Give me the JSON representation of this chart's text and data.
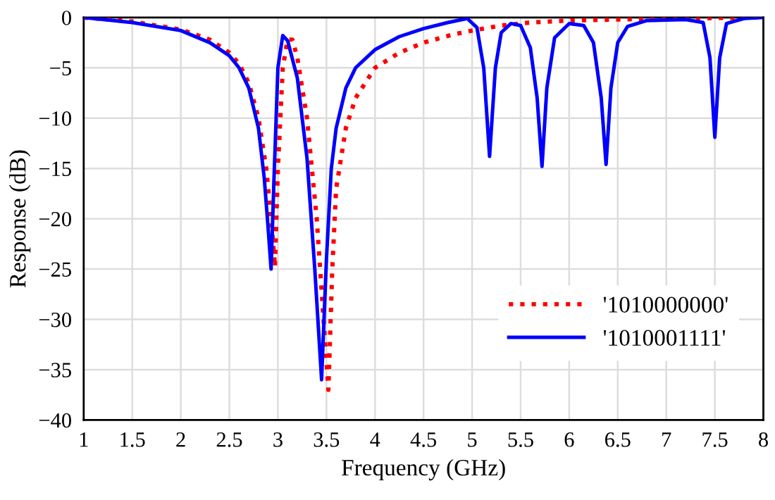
{
  "chart_data": {
    "type": "line",
    "xlabel": "Frequency (GHz)",
    "ylabel": "Response (dB)",
    "xlim": [
      1,
      8
    ],
    "xticks": [
      1,
      1.5,
      2,
      2.5,
      3,
      3.5,
      4,
      4.5,
      5,
      5.5,
      6,
      6.5,
      7,
      7.5,
      8
    ],
    "ylim": [
      -40,
      0
    ],
    "yticks": [
      {
        "value": -40,
        "label": "−40"
      },
      {
        "value": -35,
        "label": "−35"
      },
      {
        "value": -30,
        "label": "−30"
      },
      {
        "value": -25,
        "label": "−25"
      },
      {
        "value": -20,
        "label": "−20"
      },
      {
        "value": -15,
        "label": "−15"
      },
      {
        "value": -10,
        "label": "−10"
      },
      {
        "value": -5,
        "label": "−5"
      },
      0
    ],
    "grid": true,
    "legend": "lower right",
    "marker": "none",
    "series": [
      {
        "name": "'1010000000'",
        "color": "#ff0000",
        "line_style": "dotted",
        "x": [
          1.0,
          1.5,
          2.0,
          2.3,
          2.5,
          2.6,
          2.7,
          2.8,
          2.88,
          2.93,
          2.97,
          3.0,
          3.05,
          3.1,
          3.15,
          3.2,
          3.3,
          3.4,
          3.47,
          3.52,
          3.56,
          3.6,
          3.7,
          3.8,
          4.0,
          4.25,
          4.5,
          4.8,
          5.0,
          5.3,
          5.6,
          6.0,
          7.0,
          8.0
        ],
        "values": [
          0,
          -0.4,
          -1.2,
          -2.2,
          -3.5,
          -4.6,
          -6.5,
          -10,
          -15,
          -20,
          -24.8,
          -15,
          -5,
          -2.2,
          -2.2,
          -4,
          -10,
          -20,
          -30,
          -37,
          -25,
          -17,
          -11,
          -8,
          -5,
          -3.5,
          -2.5,
          -1.7,
          -1.3,
          -0.8,
          -0.5,
          -0.3,
          -0.1,
          0
        ]
      },
      {
        "name": "'1010001111'",
        "color": "#0000ff",
        "line_style": "solid",
        "x": [
          1.0,
          1.5,
          2.0,
          2.3,
          2.5,
          2.6,
          2.7,
          2.8,
          2.86,
          2.9,
          2.93,
          2.96,
          3.0,
          3.05,
          3.1,
          3.2,
          3.3,
          3.38,
          3.45,
          3.5,
          3.55,
          3.6,
          3.7,
          3.8,
          4.0,
          4.25,
          4.5,
          4.75,
          4.95,
          5.05,
          5.12,
          5.18,
          5.24,
          5.3,
          5.4,
          5.5,
          5.6,
          5.67,
          5.72,
          5.77,
          5.85,
          6.0,
          6.15,
          6.25,
          6.33,
          6.38,
          6.43,
          6.5,
          6.6,
          6.8,
          7.2,
          7.38,
          7.45,
          7.5,
          7.55,
          7.62,
          7.8,
          8.0
        ],
        "values": [
          0,
          -0.5,
          -1.3,
          -2.5,
          -3.8,
          -5,
          -7,
          -11,
          -16,
          -21,
          -25,
          -16,
          -5,
          -1.8,
          -2.3,
          -6,
          -14,
          -25,
          -36,
          -24,
          -15,
          -11,
          -7,
          -5,
          -3.2,
          -1.9,
          -1.1,
          -0.5,
          -0.1,
          -1,
          -5,
          -13.8,
          -5,
          -1.5,
          -0.6,
          -0.8,
          -3,
          -8,
          -14.8,
          -7,
          -2,
          -0.6,
          -0.8,
          -2.5,
          -8,
          -14.6,
          -7,
          -2.5,
          -0.9,
          -0.3,
          -0.2,
          -0.5,
          -4,
          -11.9,
          -4,
          -0.6,
          -0.1,
          0
        ]
      }
    ]
  }
}
